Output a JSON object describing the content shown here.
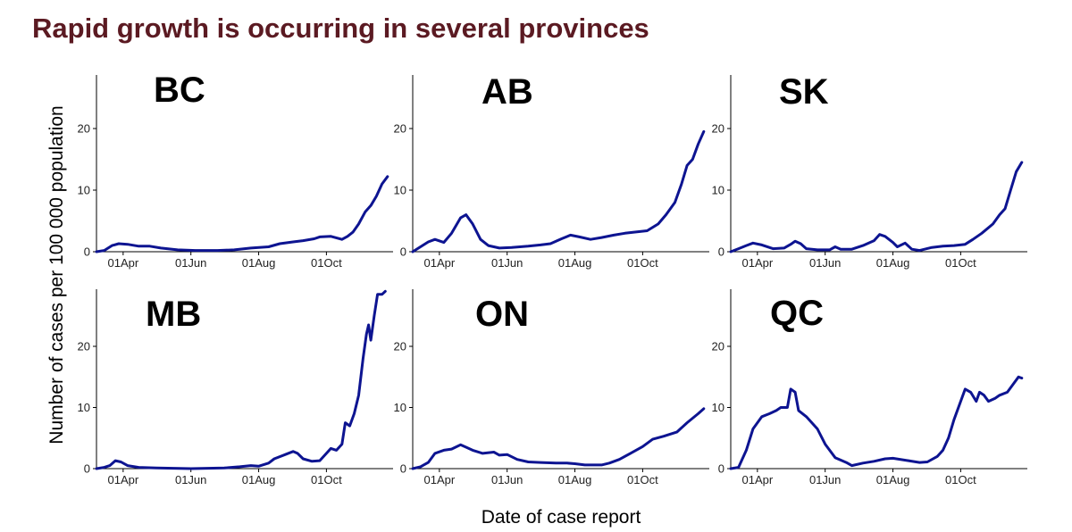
{
  "slide": {
    "title": "Rapid growth is occurring in several provinces"
  },
  "colors": {
    "title": "#5b1a22",
    "line": "#0d1491"
  },
  "chart_data": {
    "type": "line",
    "layout": "small multiples, 2 rows x 3 columns",
    "xlabel": "Date of case report",
    "ylabel": "Number of cases per 100 000 population",
    "x_ticks": [
      "01Apr",
      "01Jun",
      "01Aug",
      "01Oct"
    ],
    "x_tick_dates": [
      "2020-04-01",
      "2020-06-01",
      "2020-08-01",
      "2020-10-01"
    ],
    "x_range": [
      "2020-03-08",
      "2020-11-30"
    ],
    "rows": [
      {
        "ylim": [
          0,
          25
        ],
        "yticks": [
          0,
          10,
          20
        ]
      },
      {
        "ylim": [
          0,
          30
        ],
        "yticks": [
          0,
          10,
          20
        ]
      }
    ],
    "panels": [
      {
        "name": "BC",
        "row": 0,
        "col": 0,
        "points": [
          [
            "2020-03-08",
            0
          ],
          [
            "2020-03-15",
            0.2
          ],
          [
            "2020-03-22",
            1
          ],
          [
            "2020-03-28",
            1.3
          ],
          [
            "2020-04-05",
            1.2
          ],
          [
            "2020-04-15",
            0.9
          ],
          [
            "2020-04-25",
            0.9
          ],
          [
            "2020-05-05",
            0.6
          ],
          [
            "2020-05-20",
            0.3
          ],
          [
            "2020-06-05",
            0.2
          ],
          [
            "2020-06-25",
            0.2
          ],
          [
            "2020-07-10",
            0.3
          ],
          [
            "2020-07-25",
            0.6
          ],
          [
            "2020-08-10",
            0.8
          ],
          [
            "2020-08-20",
            1.3
          ],
          [
            "2020-09-01",
            1.6
          ],
          [
            "2020-09-10",
            1.8
          ],
          [
            "2020-09-20",
            2.1
          ],
          [
            "2020-09-25",
            2.4
          ],
          [
            "2020-10-05",
            2.5
          ],
          [
            "2020-10-15",
            2
          ],
          [
            "2020-10-20",
            2.5
          ],
          [
            "2020-10-25",
            3.2
          ],
          [
            "2020-10-30",
            4.5
          ],
          [
            "2020-11-05",
            6.5
          ],
          [
            "2020-11-10",
            7.5
          ],
          [
            "2020-11-15",
            9
          ],
          [
            "2020-11-20",
            11
          ],
          [
            "2020-11-25",
            12.2
          ]
        ]
      },
      {
        "name": "AB",
        "row": 0,
        "col": 1,
        "points": [
          [
            "2020-03-08",
            0
          ],
          [
            "2020-03-15",
            0.8
          ],
          [
            "2020-03-22",
            1.6
          ],
          [
            "2020-03-28",
            2
          ],
          [
            "2020-04-05",
            1.5
          ],
          [
            "2020-04-12",
            3
          ],
          [
            "2020-04-20",
            5.5
          ],
          [
            "2020-04-25",
            6
          ],
          [
            "2020-05-01",
            4.5
          ],
          [
            "2020-05-08",
            2
          ],
          [
            "2020-05-15",
            1
          ],
          [
            "2020-05-25",
            0.6
          ],
          [
            "2020-06-05",
            0.7
          ],
          [
            "2020-06-20",
            0.9
          ],
          [
            "2020-07-01",
            1.1
          ],
          [
            "2020-07-10",
            1.3
          ],
          [
            "2020-07-20",
            2.1
          ],
          [
            "2020-07-28",
            2.7
          ],
          [
            "2020-08-05",
            2.4
          ],
          [
            "2020-08-15",
            2
          ],
          [
            "2020-08-25",
            2.3
          ],
          [
            "2020-09-05",
            2.7
          ],
          [
            "2020-09-15",
            3
          ],
          [
            "2020-09-25",
            3.2
          ],
          [
            "2020-10-05",
            3.4
          ],
          [
            "2020-10-15",
            4.5
          ],
          [
            "2020-10-22",
            6
          ],
          [
            "2020-10-30",
            8
          ],
          [
            "2020-11-05",
            11
          ],
          [
            "2020-11-10",
            14
          ],
          [
            "2020-11-15",
            15
          ],
          [
            "2020-11-20",
            17.5
          ],
          [
            "2020-11-25",
            19.5
          ]
        ]
      },
      {
        "name": "SK",
        "row": 0,
        "col": 2,
        "points": [
          [
            "2020-03-08",
            0
          ],
          [
            "2020-03-15",
            0.5
          ],
          [
            "2020-03-22",
            1
          ],
          [
            "2020-03-28",
            1.4
          ],
          [
            "2020-04-05",
            1.1
          ],
          [
            "2020-04-15",
            0.5
          ],
          [
            "2020-04-25",
            0.6
          ],
          [
            "2020-05-01",
            1.2
          ],
          [
            "2020-05-05",
            1.7
          ],
          [
            "2020-05-10",
            1.3
          ],
          [
            "2020-05-15",
            0.5
          ],
          [
            "2020-05-25",
            0.3
          ],
          [
            "2020-06-05",
            0.3
          ],
          [
            "2020-06-10",
            0.8
          ],
          [
            "2020-06-15",
            0.4
          ],
          [
            "2020-06-25",
            0.4
          ],
          [
            "2020-07-05",
            1
          ],
          [
            "2020-07-15",
            1.8
          ],
          [
            "2020-07-20",
            2.8
          ],
          [
            "2020-07-25",
            2.5
          ],
          [
            "2020-08-01",
            1.5
          ],
          [
            "2020-08-05",
            0.8
          ],
          [
            "2020-08-12",
            1.4
          ],
          [
            "2020-08-18",
            0.4
          ],
          [
            "2020-08-25",
            0.2
          ],
          [
            "2020-09-05",
            0.7
          ],
          [
            "2020-09-15",
            0.9
          ],
          [
            "2020-09-25",
            1
          ],
          [
            "2020-10-05",
            1.2
          ],
          [
            "2020-10-12",
            2
          ],
          [
            "2020-10-20",
            3
          ],
          [
            "2020-10-30",
            4.5
          ],
          [
            "2020-11-05",
            6
          ],
          [
            "2020-11-10",
            7
          ],
          [
            "2020-11-15",
            10
          ],
          [
            "2020-11-20",
            13
          ],
          [
            "2020-11-25",
            14.5
          ]
        ]
      },
      {
        "name": "MB",
        "row": 1,
        "col": 0,
        "points": [
          [
            "2020-03-08",
            0
          ],
          [
            "2020-03-15",
            0.2
          ],
          [
            "2020-03-20",
            0.5
          ],
          [
            "2020-03-25",
            1.3
          ],
          [
            "2020-03-30",
            1.1
          ],
          [
            "2020-04-05",
            0.5
          ],
          [
            "2020-04-15",
            0.2
          ],
          [
            "2020-05-01",
            0.1
          ],
          [
            "2020-06-01",
            0
          ],
          [
            "2020-07-01",
            0.1
          ],
          [
            "2020-07-15",
            0.3
          ],
          [
            "2020-07-25",
            0.5
          ],
          [
            "2020-08-01",
            0.4
          ],
          [
            "2020-08-10",
            0.9
          ],
          [
            "2020-08-15",
            1.6
          ],
          [
            "2020-08-25",
            2.3
          ],
          [
            "2020-09-01",
            2.8
          ],
          [
            "2020-09-05",
            2.5
          ],
          [
            "2020-09-10",
            1.6
          ],
          [
            "2020-09-18",
            1.2
          ],
          [
            "2020-09-25",
            1.3
          ],
          [
            "2020-10-01",
            2.5
          ],
          [
            "2020-10-05",
            3.3
          ],
          [
            "2020-10-10",
            3
          ],
          [
            "2020-10-15",
            4
          ],
          [
            "2020-10-18",
            7.5
          ],
          [
            "2020-10-22",
            7
          ],
          [
            "2020-10-26",
            9
          ],
          [
            "2020-10-30",
            12
          ],
          [
            "2020-11-03",
            18
          ],
          [
            "2020-11-06",
            22
          ],
          [
            "2020-11-08",
            23.5
          ],
          [
            "2020-11-10",
            21
          ],
          [
            "2020-11-13",
            25
          ],
          [
            "2020-11-16",
            28.5
          ],
          [
            "2020-11-20",
            28.5
          ],
          [
            "2020-11-23",
            29
          ]
        ]
      },
      {
        "name": "ON",
        "row": 1,
        "col": 1,
        "points": [
          [
            "2020-03-08",
            0
          ],
          [
            "2020-03-15",
            0.3
          ],
          [
            "2020-03-22",
            1
          ],
          [
            "2020-03-28",
            2.5
          ],
          [
            "2020-04-05",
            3
          ],
          [
            "2020-04-12",
            3.2
          ],
          [
            "2020-04-20",
            3.9
          ],
          [
            "2020-04-25",
            3.5
          ],
          [
            "2020-05-01",
            3
          ],
          [
            "2020-05-10",
            2.5
          ],
          [
            "2020-05-20",
            2.7
          ],
          [
            "2020-05-25",
            2.2
          ],
          [
            "2020-06-01",
            2.3
          ],
          [
            "2020-06-10",
            1.5
          ],
          [
            "2020-06-20",
            1.1
          ],
          [
            "2020-07-01",
            1
          ],
          [
            "2020-07-15",
            0.9
          ],
          [
            "2020-07-25",
            0.9
          ],
          [
            "2020-08-01",
            0.8
          ],
          [
            "2020-08-10",
            0.6
          ],
          [
            "2020-08-25",
            0.6
          ],
          [
            "2020-09-01",
            0.9
          ],
          [
            "2020-09-10",
            1.5
          ],
          [
            "2020-09-20",
            2.5
          ],
          [
            "2020-10-01",
            3.6
          ],
          [
            "2020-10-10",
            4.8
          ],
          [
            "2020-10-20",
            5.3
          ],
          [
            "2020-11-01",
            6
          ],
          [
            "2020-11-10",
            7.5
          ],
          [
            "2020-11-20",
            9
          ],
          [
            "2020-11-25",
            9.8
          ]
        ]
      },
      {
        "name": "QC",
        "row": 1,
        "col": 2,
        "points": [
          [
            "2020-03-08",
            0
          ],
          [
            "2020-03-15",
            0.2
          ],
          [
            "2020-03-22",
            3
          ],
          [
            "2020-03-28",
            6.5
          ],
          [
            "2020-04-05",
            8.5
          ],
          [
            "2020-04-12",
            9
          ],
          [
            "2020-04-18",
            9.5
          ],
          [
            "2020-04-22",
            10
          ],
          [
            "2020-04-28",
            10
          ],
          [
            "2020-05-01",
            13
          ],
          [
            "2020-05-05",
            12.5
          ],
          [
            "2020-05-08",
            9.5
          ],
          [
            "2020-05-15",
            8.5
          ],
          [
            "2020-05-25",
            6.5
          ],
          [
            "2020-06-01",
            4
          ],
          [
            "2020-06-10",
            1.8
          ],
          [
            "2020-06-20",
            1
          ],
          [
            "2020-06-25",
            0.5
          ],
          [
            "2020-07-05",
            0.9
          ],
          [
            "2020-07-15",
            1.2
          ],
          [
            "2020-07-25",
            1.6
          ],
          [
            "2020-08-01",
            1.7
          ],
          [
            "2020-08-15",
            1.3
          ],
          [
            "2020-08-25",
            1
          ],
          [
            "2020-09-01",
            1.1
          ],
          [
            "2020-09-10",
            2
          ],
          [
            "2020-09-15",
            3
          ],
          [
            "2020-09-20",
            5
          ],
          [
            "2020-09-25",
            8
          ],
          [
            "2020-10-01",
            11
          ],
          [
            "2020-10-05",
            13
          ],
          [
            "2020-10-10",
            12.5
          ],
          [
            "2020-10-15",
            11
          ],
          [
            "2020-10-18",
            12.5
          ],
          [
            "2020-10-22",
            12
          ],
          [
            "2020-10-26",
            11
          ],
          [
            "2020-11-01",
            11.5
          ],
          [
            "2020-11-05",
            12
          ],
          [
            "2020-11-12",
            12.5
          ],
          [
            "2020-11-18",
            14
          ],
          [
            "2020-11-22",
            15
          ],
          [
            "2020-11-25",
            14.8
          ]
        ]
      }
    ]
  }
}
